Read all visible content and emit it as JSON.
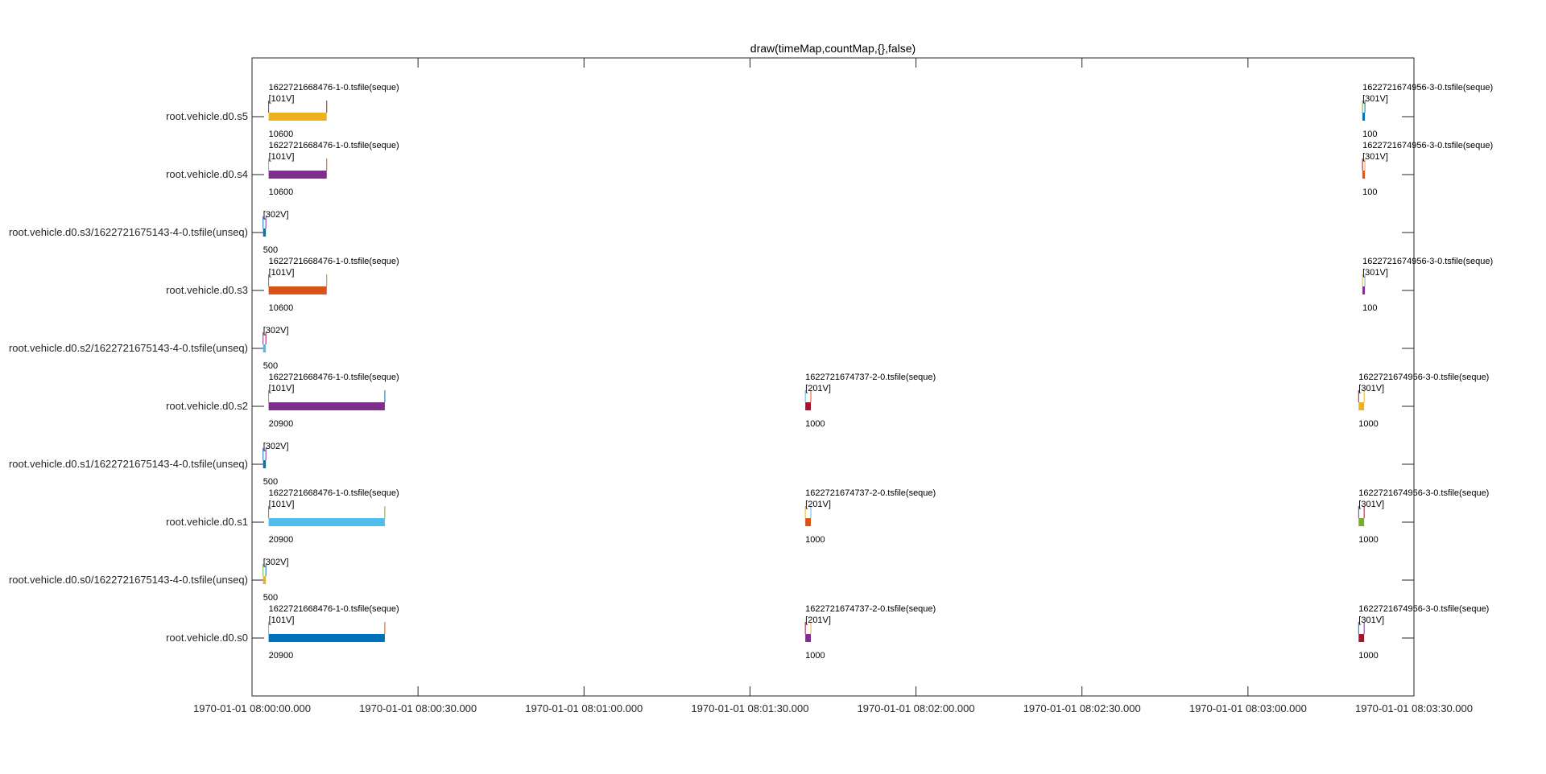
{
  "chart_data": {
    "type": "bar",
    "title": "draw(timeMap,countMap,{},false)",
    "xlabel": "",
    "ylabel": "",
    "xlim_seconds": [
      0,
      210
    ],
    "x_ticks": [
      "1970-01-01 08:00:00.000",
      "1970-01-01 08:00:30.000",
      "1970-01-01 08:01:00.000",
      "1970-01-01 08:01:30.000",
      "1970-01-01 08:02:00.000",
      "1970-01-01 08:02:30.000",
      "1970-01-01 08:03:00.000",
      "1970-01-01 08:03:30.000"
    ],
    "grid": false,
    "rows": [
      "root.vehicle.d0.s5",
      "root.vehicle.d0.s4",
      "root.vehicle.d0.s3/1622721675143-4-0.tsfile(unseq)",
      "root.vehicle.d0.s3",
      "root.vehicle.d0.s2/1622721675143-4-0.tsfile(unseq)",
      "root.vehicle.d0.s2",
      "root.vehicle.d0.s1/1622721675143-4-0.tsfile(unseq)",
      "root.vehicle.d0.s1",
      "root.vehicle.d0.s0/1622721675143-4-0.tsfile(unseq)",
      "root.vehicle.d0.s0"
    ],
    "segments": [
      {
        "row": "root.vehicle.d0.s5",
        "file": "1622721668476-1-0.tsfile(seque)",
        "version": "[101V]",
        "count": "10600",
        "start": 3,
        "end": 13.5,
        "color": "#EDB120"
      },
      {
        "row": "root.vehicle.d0.s5",
        "file": "1622721674956-3-0.tsfile(seque)",
        "version": "[301V]",
        "count": "100",
        "start": 200.7,
        "end": 201.0,
        "color": "#0072BD"
      },
      {
        "row": "root.vehicle.d0.s4",
        "file": "1622721668476-1-0.tsfile(seque)",
        "version": "[101V]",
        "count": "10600",
        "start": 3,
        "end": 13.5,
        "color": "#7E2F8E"
      },
      {
        "row": "root.vehicle.d0.s4",
        "file": "1622721674956-3-0.tsfile(seque)",
        "version": "[301V]",
        "count": "100",
        "start": 200.7,
        "end": 201.0,
        "color": "#D95319"
      },
      {
        "row": "root.vehicle.d0.s3/1622721675143-4-0.tsfile(unseq)",
        "file": "",
        "version": "[302V]",
        "count": "500",
        "start": 2.0,
        "end": 2.5,
        "color": "#0072BD"
      },
      {
        "row": "root.vehicle.d0.s3",
        "file": "1622721668476-1-0.tsfile(seque)",
        "version": "[101V]",
        "count": "10600",
        "start": 3,
        "end": 13.5,
        "color": "#D95319"
      },
      {
        "row": "root.vehicle.d0.s3",
        "file": "1622721674956-3-0.tsfile(seque)",
        "version": "[301V]",
        "count": "100",
        "start": 200.7,
        "end": 201.0,
        "color": "#7E2F8E"
      },
      {
        "row": "root.vehicle.d0.s2/1622721675143-4-0.tsfile(unseq)",
        "file": "",
        "version": "[302V]",
        "count": "500",
        "start": 2.0,
        "end": 2.5,
        "color": "#4DBEEE"
      },
      {
        "row": "root.vehicle.d0.s2",
        "file": "1622721668476-1-0.tsfile(seque)",
        "version": "[101V]",
        "count": "20900",
        "start": 3,
        "end": 24,
        "color": "#7E2F8E"
      },
      {
        "row": "root.vehicle.d0.s2",
        "file": "1622721674737-2-0.tsfile(seque)",
        "version": "[201V]",
        "count": "1000",
        "start": 100,
        "end": 101,
        "color": "#A2142F"
      },
      {
        "row": "root.vehicle.d0.s2",
        "file": "1622721674956-3-0.tsfile(seque)",
        "version": "[301V]",
        "count": "1000",
        "start": 200,
        "end": 201,
        "color": "#EDB120"
      },
      {
        "row": "root.vehicle.d0.s1/1622721675143-4-0.tsfile(unseq)",
        "file": "",
        "version": "[302V]",
        "count": "500",
        "start": 2.0,
        "end": 2.5,
        "color": "#0072BD"
      },
      {
        "row": "root.vehicle.d0.s1",
        "file": "1622721668476-1-0.tsfile(seque)",
        "version": "[101V]",
        "count": "20900",
        "start": 3,
        "end": 24,
        "color": "#4DBEEE"
      },
      {
        "row": "root.vehicle.d0.s1",
        "file": "1622721674737-2-0.tsfile(seque)",
        "version": "[201V]",
        "count": "1000",
        "start": 100,
        "end": 101,
        "color": "#D95319"
      },
      {
        "row": "root.vehicle.d0.s1",
        "file": "1622721674956-3-0.tsfile(seque)",
        "version": "[301V]",
        "count": "1000",
        "start": 200,
        "end": 201,
        "color": "#77AC30"
      },
      {
        "row": "root.vehicle.d0.s0/1622721675143-4-0.tsfile(unseq)",
        "file": "",
        "version": "[302V]",
        "count": "500",
        "start": 2.0,
        "end": 2.5,
        "color": "#EDB120"
      },
      {
        "row": "root.vehicle.d0.s0",
        "file": "1622721668476-1-0.tsfile(seque)",
        "version": "[101V]",
        "count": "20900",
        "start": 3,
        "end": 24,
        "color": "#0072BD"
      },
      {
        "row": "root.vehicle.d0.s0",
        "file": "1622721674737-2-0.tsfile(seque)",
        "version": "[201V]",
        "count": "1000",
        "start": 100,
        "end": 101,
        "color": "#7E2F8E"
      },
      {
        "row": "root.vehicle.d0.s0",
        "file": "1622721674956-3-0.tsfile(seque)",
        "version": "[301V]",
        "count": "1000",
        "start": 200,
        "end": 201,
        "color": "#A2142F"
      }
    ]
  }
}
